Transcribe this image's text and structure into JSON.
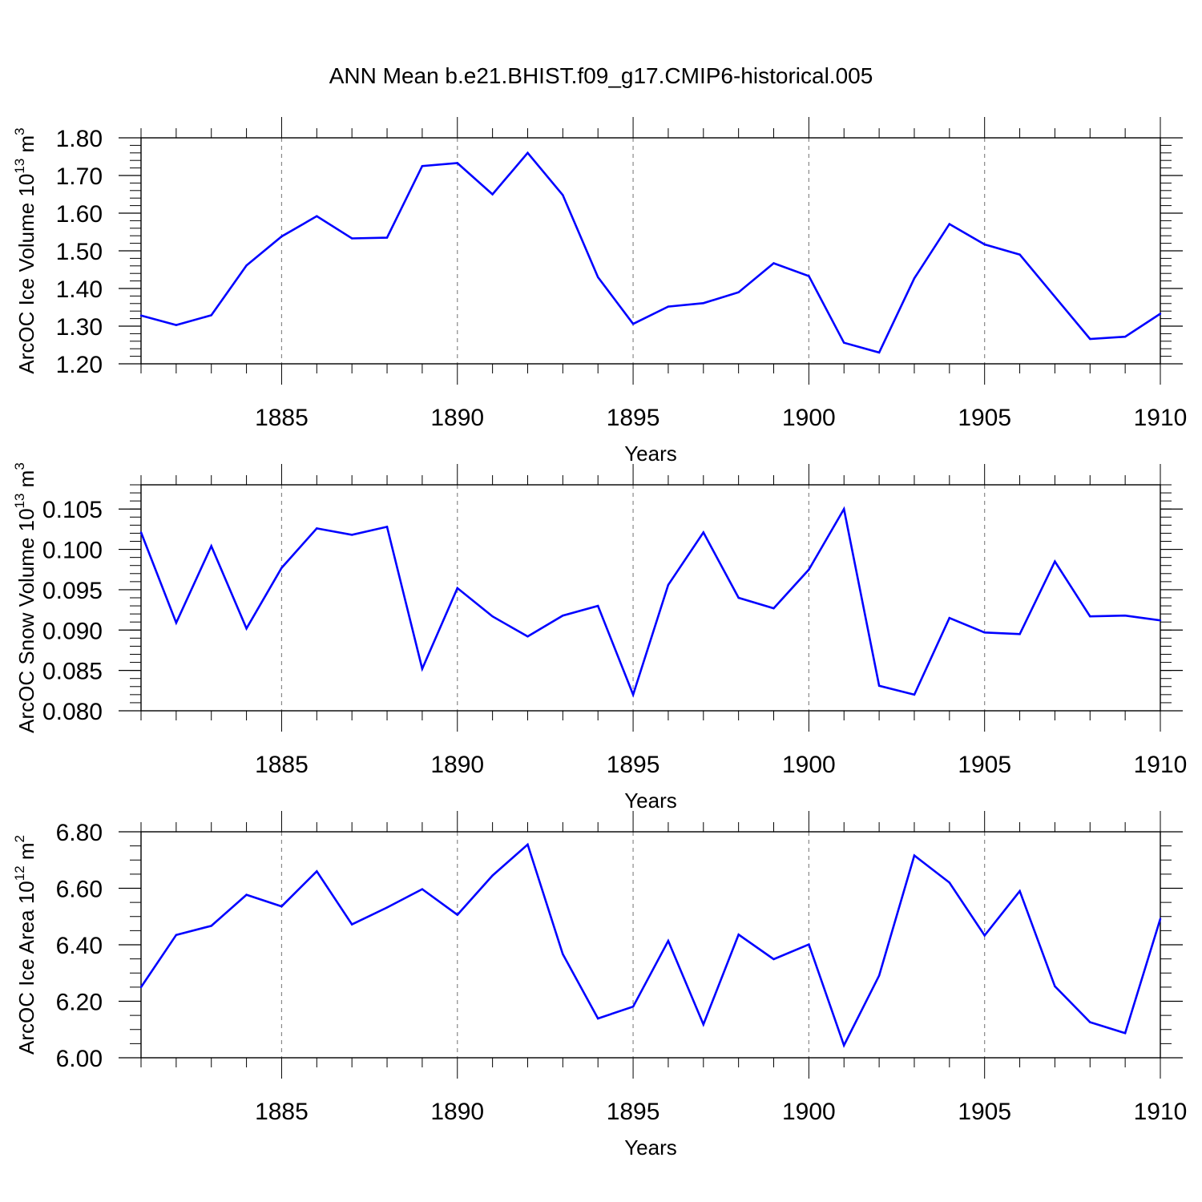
{
  "title": "ANN Mean b.e21.BHIST.f09_g17.CMIP6-historical.005",
  "line_color": "#0000ff",
  "chart_data": [
    {
      "type": "line",
      "ylabel_main": "ArcOC Ice Volume 10",
      "ylabel_exp": "13",
      "ylabel_unit": " m",
      "ylabel_unit_exp": "3",
      "xlabel": "Years",
      "xlim": [
        1881,
        1910
      ],
      "ylim": [
        1.2,
        1.8
      ],
      "yticks": [
        1.2,
        1.3,
        1.4,
        1.5,
        1.6,
        1.7,
        1.8
      ],
      "ytick_labels": [
        "1.20",
        "1.30",
        "1.40",
        "1.50",
        "1.60",
        "1.70",
        "1.80"
      ],
      "yminor_step": 0.02,
      "xticks": [
        1885,
        1890,
        1895,
        1900,
        1905,
        1910
      ],
      "xtick_labels": [
        "1885",
        "1890",
        "1895",
        "1900",
        "1905",
        "1910"
      ],
      "grid": "vertical dashed at major x ticks",
      "series": [
        {
          "name": "Ice Volume",
          "x": [
            1881,
            1882,
            1883,
            1884,
            1885,
            1886,
            1887,
            1888,
            1889,
            1890,
            1891,
            1892,
            1893,
            1894,
            1895,
            1896,
            1897,
            1898,
            1899,
            1900,
            1901,
            1902,
            1903,
            1904,
            1905,
            1906,
            1907,
            1908,
            1909,
            1910
          ],
          "values": [
            1.328,
            1.303,
            1.329,
            1.461,
            1.538,
            1.592,
            1.533,
            1.535,
            1.725,
            1.733,
            1.65,
            1.76,
            1.648,
            1.43,
            1.306,
            1.352,
            1.361,
            1.39,
            1.467,
            1.433,
            1.256,
            1.23,
            1.427,
            1.571,
            1.517,
            1.49,
            1.378,
            1.266,
            1.272,
            1.333
          ]
        }
      ]
    },
    {
      "type": "line",
      "ylabel_main": "ArcOC Snow Volume 10",
      "ylabel_exp": "13",
      "ylabel_unit": " m",
      "ylabel_unit_exp": "3",
      "xlabel": "Years",
      "xlim": [
        1881,
        1910
      ],
      "ylim": [
        0.08,
        0.108
      ],
      "yticks": [
        0.08,
        0.085,
        0.09,
        0.095,
        0.1,
        0.105
      ],
      "ytick_labels": [
        "0.080",
        "0.085",
        "0.090",
        "0.095",
        "0.100",
        "0.105"
      ],
      "yminor_step": 0.001,
      "xticks": [
        1885,
        1890,
        1895,
        1900,
        1905,
        1910
      ],
      "xtick_labels": [
        "1885",
        "1890",
        "1895",
        "1900",
        "1905",
        "1910"
      ],
      "grid": "vertical dashed at major x ticks",
      "series": [
        {
          "name": "Snow Volume",
          "x": [
            1881,
            1882,
            1883,
            1884,
            1885,
            1886,
            1887,
            1888,
            1889,
            1890,
            1891,
            1892,
            1893,
            1894,
            1895,
            1896,
            1897,
            1898,
            1899,
            1900,
            1901,
            1902,
            1903,
            1904,
            1905,
            1906,
            1907,
            1908,
            1909,
            1910
          ],
          "values": [
            0.1021,
            0.0909,
            0.1004,
            0.0902,
            0.0977,
            0.1026,
            0.1018,
            0.1028,
            0.0852,
            0.0952,
            0.0917,
            0.0892,
            0.0918,
            0.093,
            0.082,
            0.0956,
            0.1021,
            0.094,
            0.0927,
            0.0975,
            0.105,
            0.0831,
            0.082,
            0.0915,
            0.0897,
            0.0895,
            0.0985,
            0.0917,
            0.0918,
            0.0912
          ]
        }
      ]
    },
    {
      "type": "line",
      "ylabel_main": "ArcOC Ice Area 10",
      "ylabel_exp": "12",
      "ylabel_unit": " m",
      "ylabel_unit_exp": "2",
      "xlabel": "Years",
      "xlim": [
        1881,
        1910
      ],
      "ylim": [
        6.0,
        6.8
      ],
      "yticks": [
        6.0,
        6.2,
        6.4,
        6.6,
        6.8
      ],
      "ytick_labels": [
        "6.00",
        "6.20",
        "6.40",
        "6.60",
        "6.80"
      ],
      "yminor_step": 0.05,
      "xticks": [
        1885,
        1890,
        1895,
        1900,
        1905,
        1910
      ],
      "xtick_labels": [
        "1885",
        "1890",
        "1895",
        "1900",
        "1905",
        "1910"
      ],
      "grid": "vertical dashed at major x ticks",
      "series": [
        {
          "name": "Ice Area",
          "x": [
            1881,
            1882,
            1883,
            1884,
            1885,
            1886,
            1887,
            1888,
            1889,
            1890,
            1891,
            1892,
            1893,
            1894,
            1895,
            1896,
            1897,
            1898,
            1899,
            1900,
            1901,
            1902,
            1903,
            1904,
            1905,
            1906,
            1907,
            1908,
            1909,
            1910
          ],
          "values": [
            6.25,
            6.435,
            6.467,
            6.577,
            6.536,
            6.66,
            6.472,
            6.532,
            6.597,
            6.506,
            6.645,
            6.755,
            6.367,
            6.139,
            6.181,
            6.414,
            6.118,
            6.436,
            6.349,
            6.401,
            6.044,
            6.291,
            6.716,
            6.62,
            6.433,
            6.59,
            6.253,
            6.126,
            6.087,
            6.492
          ]
        }
      ]
    }
  ]
}
